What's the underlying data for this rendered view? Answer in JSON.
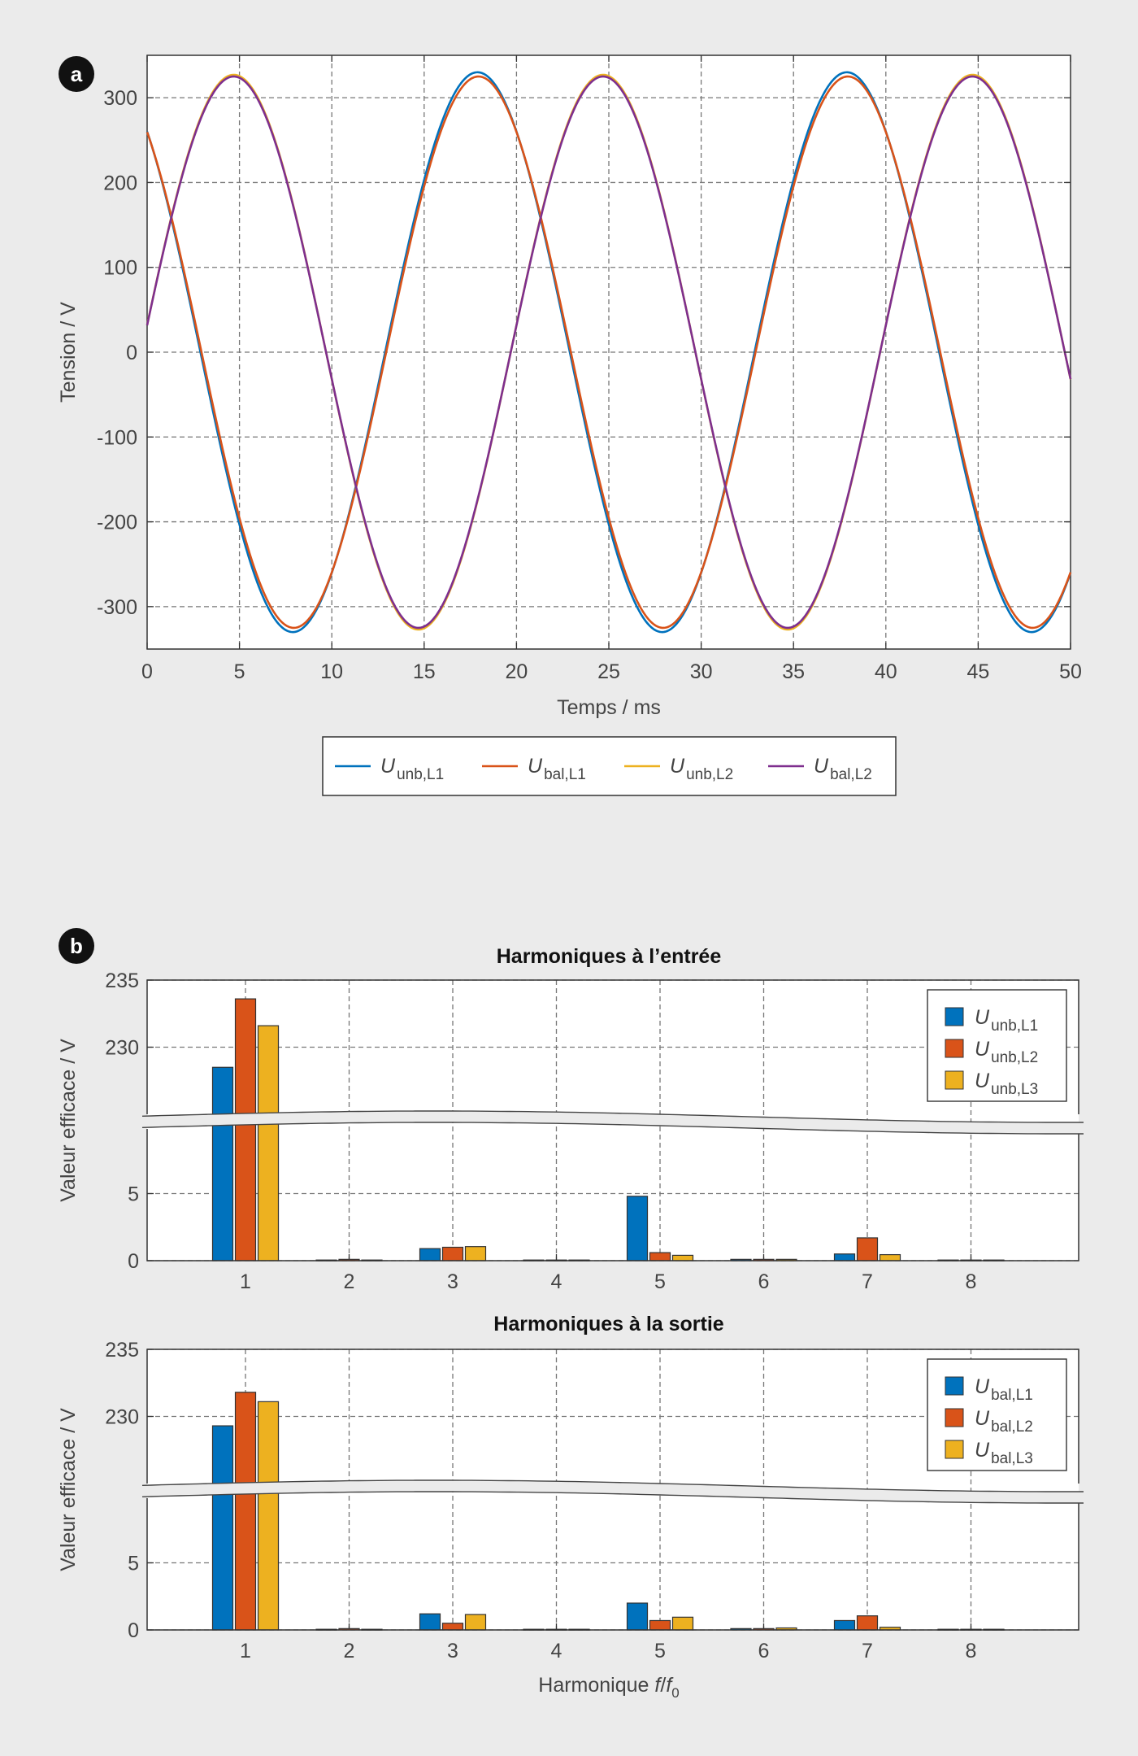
{
  "panels": {
    "a": {
      "badge": "a"
    },
    "b": {
      "badge": "b"
    }
  },
  "chart_data": [
    {
      "type": "line",
      "xlabel": "Temps / ms",
      "ylabel": "Tension / V",
      "xlim": [
        0,
        50
      ],
      "ylim": [
        -350,
        350
      ],
      "xticks": [
        "0",
        "5",
        "10",
        "15",
        "20",
        "25",
        "30",
        "35",
        "40",
        "45",
        "50"
      ],
      "yticks": [
        "-300",
        "-200",
        "-100",
        "0",
        "100",
        "200",
        "300"
      ],
      "grid": true,
      "legend_position": "below",
      "series": [
        {
          "name": "U",
          "sub": "unb,L1",
          "color": "#0072BD",
          "amplitude": 330,
          "phase_deg": 128,
          "freq_hz": 50
        },
        {
          "name": "U",
          "sub": "bal,L1",
          "color": "#D95319",
          "amplitude": 325,
          "phase_deg": 127,
          "freq_hz": 50
        },
        {
          "name": "U",
          "sub": "unb,L2",
          "color": "#EDB120",
          "amplitude": 327,
          "phase_deg": 5.6,
          "freq_hz": 50
        },
        {
          "name": "U",
          "sub": "bal,L2",
          "color": "#7E2F8E",
          "amplitude": 325,
          "phase_deg": 5.6,
          "freq_hz": 50
        }
      ]
    },
    {
      "type": "bar",
      "title": "Harmoniques à l’entrée",
      "ylabel": "Valeur efficace / V",
      "categories": [
        "1",
        "2",
        "3",
        "4",
        "5",
        "6",
        "7",
        "8"
      ],
      "upper_yticks": [
        "230",
        "235"
      ],
      "lower_yticks": [
        "0",
        "5"
      ],
      "upper_ylim": [
        225,
        235
      ],
      "lower_ylim": [
        0,
        10
      ],
      "legend_position": "top-right",
      "series": [
        {
          "name": "U",
          "sub": "unb,L1",
          "color": "#0072BD",
          "values": [
            228.5,
            0.05,
            0.9,
            0.05,
            4.8,
            0.1,
            0.5,
            0.05
          ]
        },
        {
          "name": "U",
          "sub": "unb,L2",
          "color": "#D95319",
          "values": [
            233.6,
            0.1,
            1.0,
            0.05,
            0.6,
            0.1,
            1.7,
            0.05
          ]
        },
        {
          "name": "U",
          "sub": "unb,L3",
          "color": "#EDB120",
          "values": [
            231.6,
            0.05,
            1.05,
            0.05,
            0.4,
            0.1,
            0.45,
            0.05
          ]
        }
      ]
    },
    {
      "type": "bar",
      "title": "Harmoniques à la sortie",
      "ylabel": "Valeur efficace / V",
      "xlabel_main": "Harmonique ",
      "xlabel_f": "f",
      "xlabel_slash": "/",
      "xlabel_f0": "f",
      "xlabel_f0_sub": "0",
      "categories": [
        "1",
        "2",
        "3",
        "4",
        "5",
        "6",
        "7",
        "8"
      ],
      "upper_yticks": [
        "230",
        "235"
      ],
      "lower_yticks": [
        "0",
        "5"
      ],
      "upper_ylim": [
        225,
        235
      ],
      "lower_ylim": [
        0,
        10
      ],
      "legend_position": "top-right",
      "series": [
        {
          "name": "U",
          "sub": "bal,L1",
          "color": "#0072BD",
          "values": [
            229.3,
            0.05,
            1.2,
            0.05,
            2.0,
            0.1,
            0.7,
            0.05
          ]
        },
        {
          "name": "U",
          "sub": "bal,L2",
          "color": "#D95319",
          "values": [
            231.8,
            0.1,
            0.5,
            0.05,
            0.7,
            0.1,
            1.05,
            0.05
          ]
        },
        {
          "name": "U",
          "sub": "bal,L3",
          "color": "#EDB120",
          "values": [
            231.1,
            0.05,
            1.15,
            0.05,
            0.95,
            0.15,
            0.2,
            0.05
          ]
        }
      ]
    }
  ]
}
